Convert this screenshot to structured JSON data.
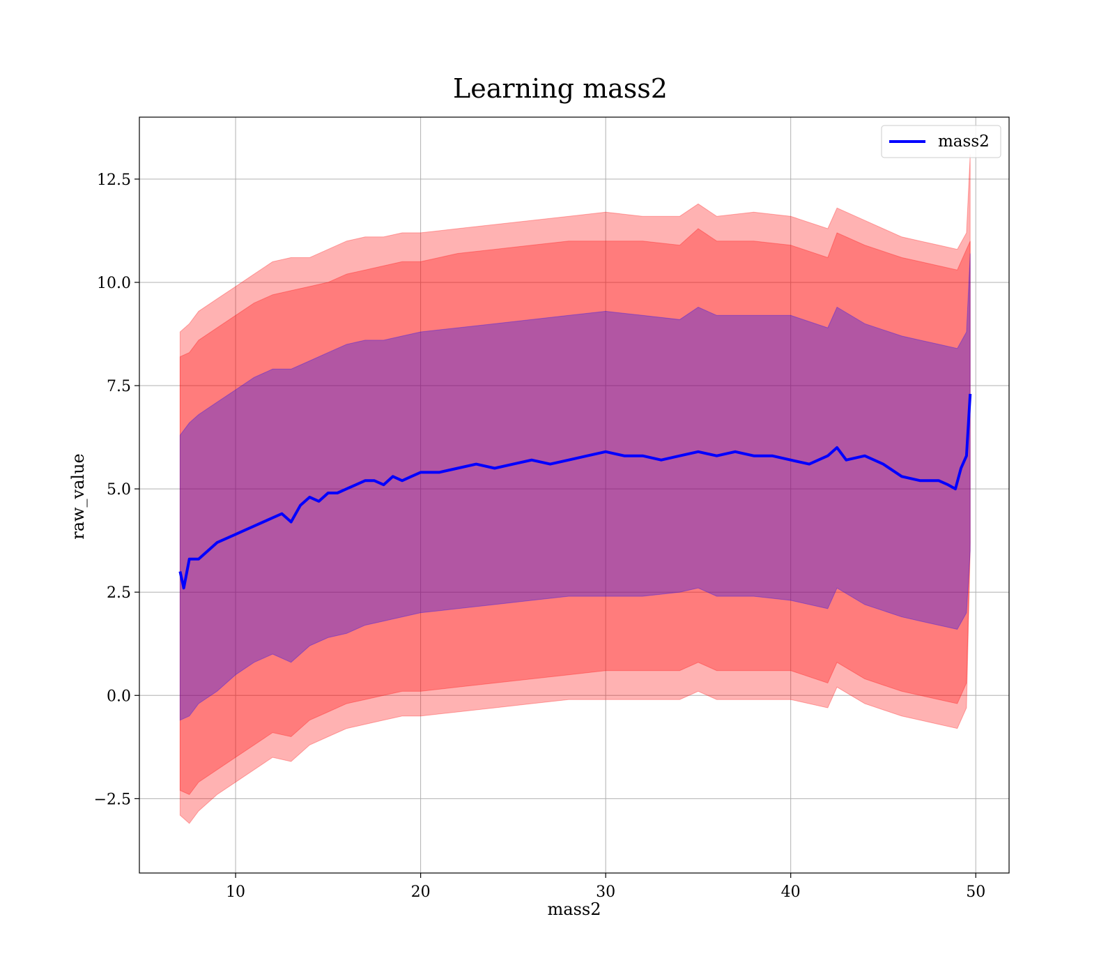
{
  "chart_data": {
    "type": "line",
    "title": "Learning mass2",
    "xlabel": "mass2",
    "ylabel": "raw_value",
    "xlim": [
      4.8,
      51.8
    ],
    "ylim": [
      -4.3,
      14.0
    ],
    "x_ticks": [
      10,
      20,
      30,
      40,
      50
    ],
    "y_ticks": [
      -2.5,
      0.0,
      2.5,
      5.0,
      7.5,
      10.0,
      12.5
    ],
    "x_tick_labels": [
      "10",
      "20",
      "30",
      "40",
      "50"
    ],
    "y_tick_labels": [
      "−2.5",
      "0.0",
      "2.5",
      "5.0",
      "7.5",
      "10.0",
      "12.5"
    ],
    "grid": true,
    "legend_position": "top-right",
    "series": [
      {
        "name": "mass2",
        "color": "#0000ff",
        "x": [
          7.0,
          7.2,
          7.5,
          8.0,
          8.5,
          9.0,
          9.5,
          10.0,
          10.5,
          11.0,
          11.5,
          12.0,
          12.5,
          13.0,
          13.5,
          14.0,
          14.5,
          15.0,
          15.5,
          16.0,
          16.5,
          17.0,
          17.5,
          18.0,
          18.5,
          19.0,
          19.5,
          20.0,
          21.0,
          22.0,
          23.0,
          24.0,
          25.0,
          26.0,
          27.0,
          28.0,
          29.0,
          30.0,
          31.0,
          32.0,
          33.0,
          34.0,
          35.0,
          36.0,
          37.0,
          38.0,
          39.0,
          40.0,
          41.0,
          42.0,
          42.5,
          43.0,
          44.0,
          45.0,
          46.0,
          47.0,
          48.0,
          48.5,
          48.9,
          49.2,
          49.5,
          49.7
        ],
        "values": [
          3.0,
          2.6,
          3.3,
          3.3,
          3.5,
          3.7,
          3.8,
          3.9,
          4.0,
          4.1,
          4.2,
          4.3,
          4.4,
          4.2,
          4.6,
          4.8,
          4.7,
          4.9,
          4.9,
          5.0,
          5.1,
          5.2,
          5.2,
          5.1,
          5.3,
          5.2,
          5.3,
          5.4,
          5.4,
          5.5,
          5.6,
          5.5,
          5.6,
          5.7,
          5.6,
          5.7,
          5.8,
          5.9,
          5.8,
          5.8,
          5.7,
          5.8,
          5.9,
          5.8,
          5.9,
          5.8,
          5.8,
          5.7,
          5.6,
          5.8,
          6.0,
          5.7,
          5.8,
          5.6,
          5.3,
          5.2,
          5.2,
          5.1,
          5.0,
          5.5,
          5.8,
          7.3
        ]
      }
    ],
    "bands": [
      {
        "color": "#ff0000",
        "opacity": 0.3,
        "x": [
          7.0,
          7.5,
          8.0,
          9.0,
          10.0,
          11.0,
          12.0,
          13.0,
          14.0,
          15.0,
          16.0,
          17.0,
          18.0,
          19.0,
          20.0,
          22.0,
          24.0,
          26.0,
          28.0,
          30.0,
          32.0,
          34.0,
          35.0,
          36.0,
          38.0,
          40.0,
          42.0,
          42.5,
          44.0,
          46.0,
          47.0,
          48.0,
          49.0,
          49.5,
          49.7
        ],
        "upper": [
          8.8,
          9.0,
          9.3,
          9.6,
          9.9,
          10.2,
          10.5,
          10.6,
          10.6,
          10.8,
          11.0,
          11.1,
          11.1,
          11.2,
          11.2,
          11.3,
          11.4,
          11.5,
          11.6,
          11.7,
          11.6,
          11.6,
          11.9,
          11.6,
          11.7,
          11.6,
          11.3,
          11.8,
          11.5,
          11.1,
          11.0,
          10.9,
          10.8,
          11.2,
          13.1
        ],
        "lower": [
          -2.9,
          -3.1,
          -2.8,
          -2.4,
          -2.1,
          -1.8,
          -1.5,
          -1.6,
          -1.2,
          -1.0,
          -0.8,
          -0.7,
          -0.6,
          -0.5,
          -0.5,
          -0.4,
          -0.3,
          -0.2,
          -0.1,
          -0.1,
          -0.1,
          -0.1,
          0.1,
          -0.1,
          -0.1,
          -0.1,
          -0.3,
          0.2,
          -0.2,
          -0.5,
          -0.6,
          -0.7,
          -0.8,
          -0.3,
          3.5
        ]
      },
      {
        "color": "#ff0000",
        "opacity": 0.3,
        "x": [
          7.0,
          7.5,
          8.0,
          9.0,
          10.0,
          11.0,
          12.0,
          13.0,
          14.0,
          15.0,
          16.0,
          17.0,
          18.0,
          19.0,
          20.0,
          22.0,
          24.0,
          26.0,
          28.0,
          30.0,
          32.0,
          34.0,
          35.0,
          36.0,
          38.0,
          40.0,
          42.0,
          42.5,
          44.0,
          46.0,
          47.0,
          48.0,
          49.0,
          49.5,
          49.7
        ],
        "upper": [
          8.2,
          8.3,
          8.6,
          8.9,
          9.2,
          9.5,
          9.7,
          9.8,
          9.9,
          10.0,
          10.2,
          10.3,
          10.4,
          10.5,
          10.5,
          10.7,
          10.8,
          10.9,
          11.0,
          11.0,
          11.0,
          10.9,
          11.3,
          11.0,
          11.0,
          10.9,
          10.6,
          11.2,
          10.9,
          10.6,
          10.5,
          10.4,
          10.3,
          10.8,
          11.0
        ],
        "lower": [
          -2.3,
          -2.4,
          -2.1,
          -1.8,
          -1.5,
          -1.2,
          -0.9,
          -1.0,
          -0.6,
          -0.4,
          -0.2,
          -0.1,
          0.0,
          0.1,
          0.1,
          0.2,
          0.3,
          0.4,
          0.5,
          0.6,
          0.6,
          0.6,
          0.8,
          0.6,
          0.6,
          0.6,
          0.3,
          0.8,
          0.4,
          0.1,
          0.0,
          -0.1,
          -0.2,
          0.3,
          3.7
        ]
      },
      {
        "color": "#0000ff",
        "opacity": 0.3,
        "x": [
          7.0,
          7.5,
          8.0,
          9.0,
          10.0,
          11.0,
          12.0,
          13.0,
          14.0,
          15.0,
          16.0,
          17.0,
          18.0,
          19.0,
          20.0,
          22.0,
          24.0,
          26.0,
          28.0,
          30.0,
          32.0,
          34.0,
          35.0,
          36.0,
          38.0,
          40.0,
          42.0,
          42.5,
          44.0,
          46.0,
          47.0,
          48.0,
          49.0,
          49.5,
          49.7
        ],
        "upper": [
          6.3,
          6.6,
          6.8,
          7.1,
          7.4,
          7.7,
          7.9,
          7.9,
          8.1,
          8.3,
          8.5,
          8.6,
          8.6,
          8.7,
          8.8,
          8.9,
          9.0,
          9.1,
          9.2,
          9.3,
          9.2,
          9.1,
          9.4,
          9.2,
          9.2,
          9.2,
          8.9,
          9.4,
          9.0,
          8.7,
          8.6,
          8.5,
          8.4,
          8.8,
          10.7
        ],
        "lower": [
          -0.6,
          -0.5,
          -0.2,
          0.1,
          0.5,
          0.8,
          1.0,
          0.8,
          1.2,
          1.4,
          1.5,
          1.7,
          1.8,
          1.9,
          2.0,
          2.1,
          2.2,
          2.3,
          2.4,
          2.4,
          2.4,
          2.5,
          2.6,
          2.4,
          2.4,
          2.3,
          2.1,
          2.6,
          2.2,
          1.9,
          1.8,
          1.7,
          1.6,
          2.0,
          3.5
        ]
      }
    ]
  }
}
